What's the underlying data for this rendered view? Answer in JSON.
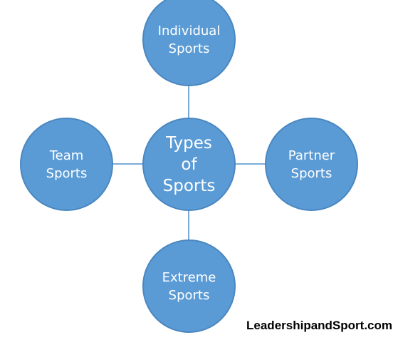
{
  "diagram": {
    "center": {
      "label": "Types\nof\nSports"
    },
    "top": {
      "label": "Individual\nSports"
    },
    "left": {
      "label": "Team\nSports"
    },
    "right": {
      "label": "Partner\nSports"
    },
    "bottom": {
      "label": "Extreme\nSports"
    }
  },
  "watermark": "LeadershipandSport.com",
  "colors": {
    "node_fill": "#5b9bd5",
    "node_border": "#4a87c0",
    "connector": "#7aabd8",
    "node_text": "#ffffff"
  }
}
